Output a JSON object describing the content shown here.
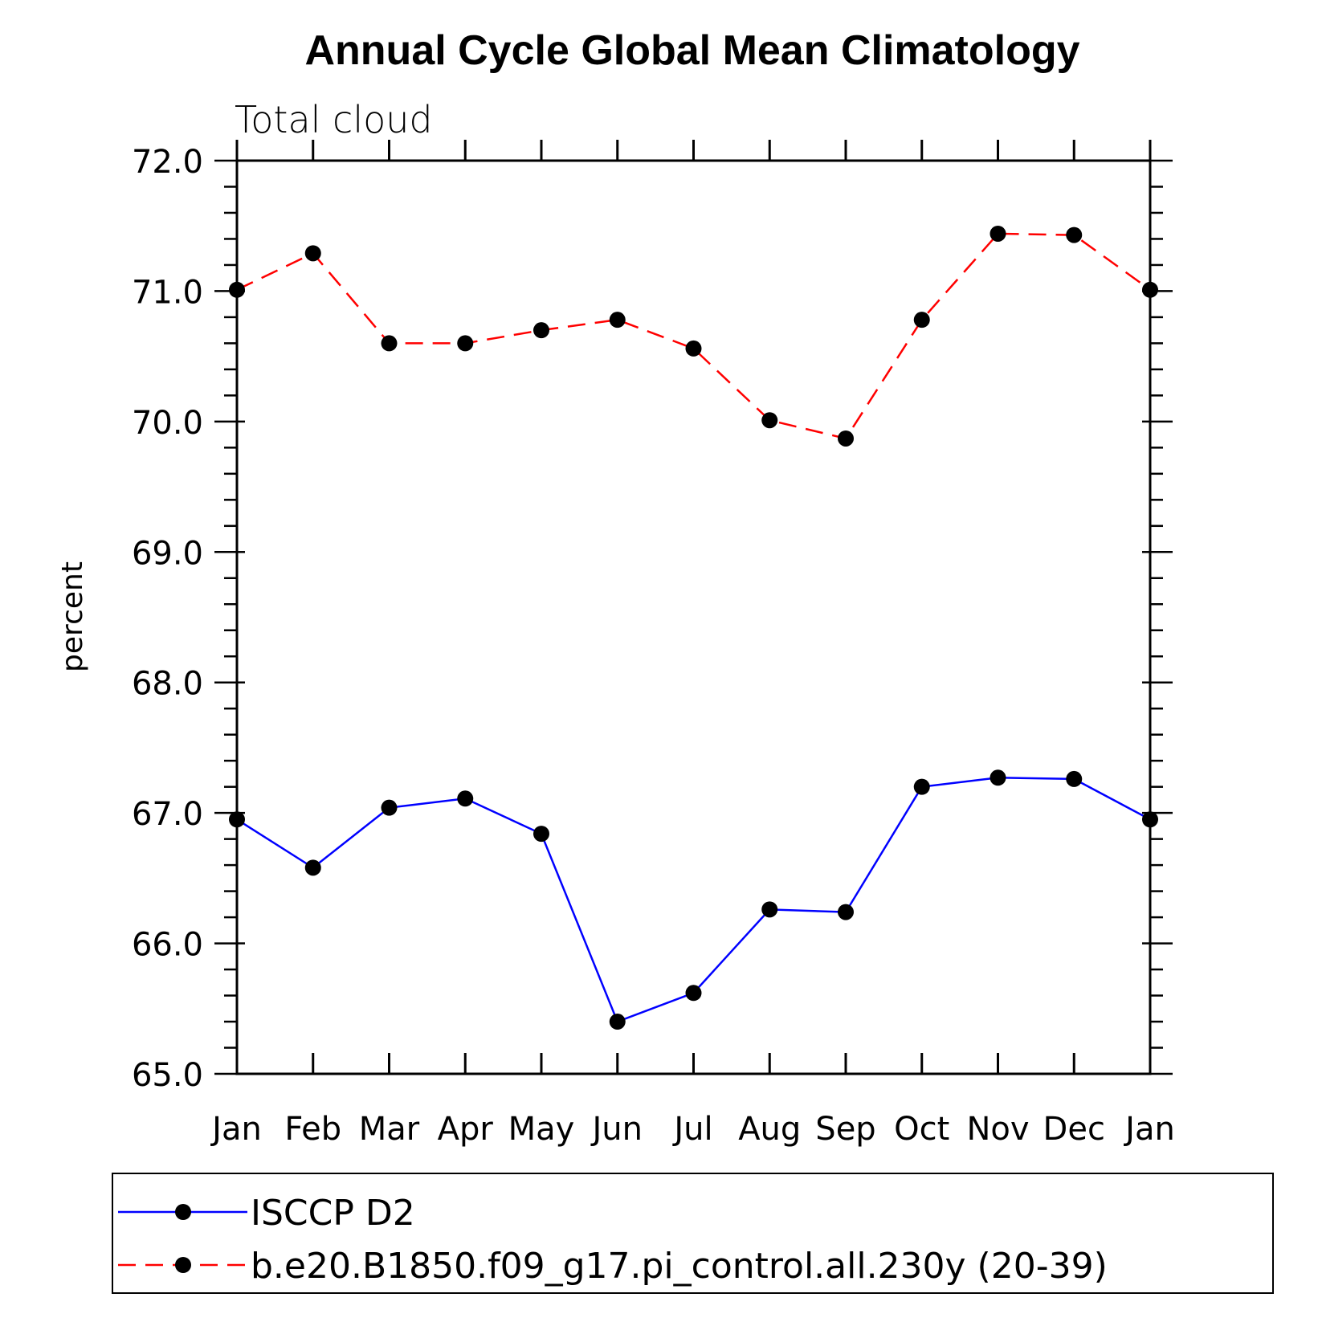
{
  "chart_data": {
    "type": "line",
    "title": "Annual Cycle Global Mean Climatology",
    "subtitle": "Total cloud",
    "xlabel": "",
    "ylabel": "percent",
    "x": [
      "Jan",
      "Feb",
      "Mar",
      "Apr",
      "May",
      "Jun",
      "Jul",
      "Aug",
      "Sep",
      "Oct",
      "Nov",
      "Dec",
      "Jan"
    ],
    "ylim": [
      65.0,
      72.0
    ],
    "yticks": [
      "65.0",
      "66.0",
      "67.0",
      "68.0",
      "69.0",
      "70.0",
      "71.0",
      "72.0"
    ],
    "grid": false,
    "legend_position": "bottom",
    "series": [
      {
        "name": "ISCCP D2",
        "color": "#0000ff",
        "style": "solid",
        "marker": "circle",
        "values": [
          66.95,
          66.58,
          67.04,
          67.11,
          66.84,
          65.4,
          65.62,
          66.26,
          66.24,
          67.2,
          67.27,
          67.26,
          66.95
        ]
      },
      {
        "name": "b.e20.B1850.f09_g17.pi_control.all.230y (20-39)",
        "color": "#ff0000",
        "style": "dashed",
        "marker": "circle",
        "values": [
          71.01,
          71.29,
          70.6,
          70.6,
          70.7,
          70.78,
          70.56,
          70.01,
          69.87,
          70.78,
          71.44,
          71.43,
          71.01
        ]
      }
    ]
  }
}
